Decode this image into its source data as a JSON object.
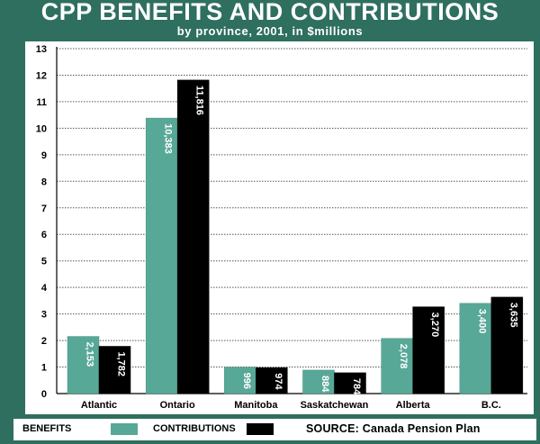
{
  "chart_data": {
    "type": "bar",
    "title": "CPP BENEFITS AND CONTRIBUTIONS",
    "subtitle": "by province, 2001, in $millions",
    "categories": [
      "Atlantic",
      "Ontario",
      "Manitoba",
      "Saskatchewan",
      "Alberta",
      "B.C."
    ],
    "series": [
      {
        "name": "BENEFITS",
        "color": "#58a898",
        "values": [
          2153,
          10383,
          996,
          884,
          2078,
          3400
        ],
        "labels": [
          "2,153",
          "10,383",
          "996",
          "884",
          "2,078",
          "3,400"
        ]
      },
      {
        "name": "CONTRIBUTIONS",
        "color": "#000000",
        "values": [
          1782,
          11816,
          974,
          784,
          3270,
          3635
        ],
        "labels": [
          "1,782",
          "11,816",
          "974",
          "784",
          "3,270",
          "3,635"
        ]
      }
    ],
    "yticks": [
      "0",
      "1",
      "2",
      "3",
      "4",
      "5",
      "6",
      "7",
      "8",
      "9",
      "10",
      "11",
      "12",
      "13"
    ],
    "ylim": [
      0,
      13000
    ],
    "grid": "horizontal dotted",
    "legend_position": "bottom",
    "source": "SOURCE: Canada Pension Plan"
  }
}
